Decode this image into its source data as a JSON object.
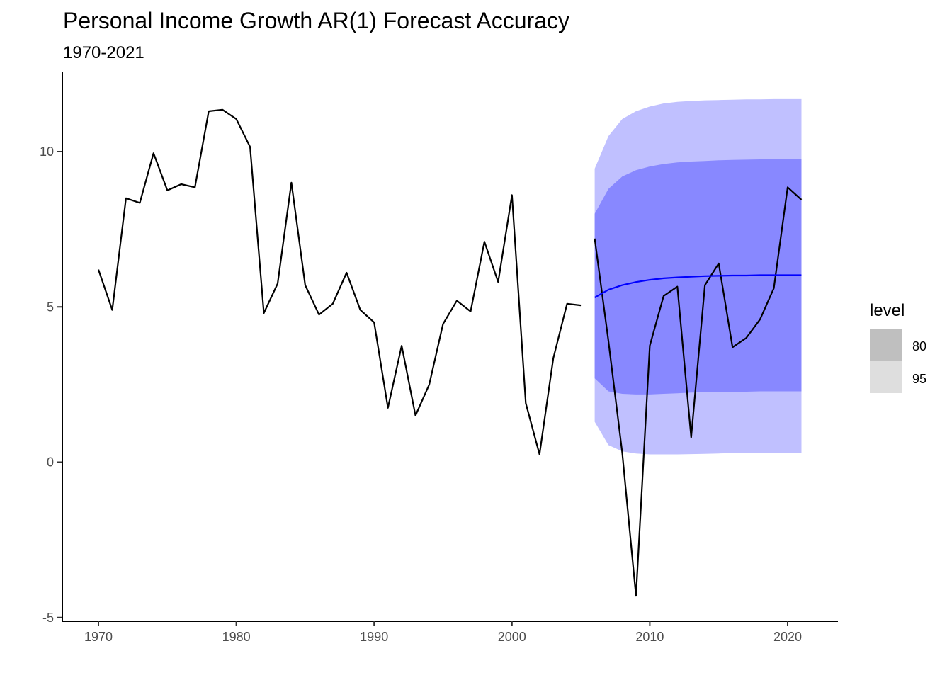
{
  "chart_data": {
    "type": "line",
    "title": "Personal Income Growth AR(1) Forecast Accuracy",
    "subtitle": "1970-2021",
    "xlabel": "",
    "ylabel": "",
    "xlim": [
      1967.5,
      2023.5
    ],
    "ylim": [
      -5.1,
      12.5
    ],
    "x_ticks": [
      1970,
      1980,
      1990,
      2000,
      2010,
      2020
    ],
    "y_ticks": [
      -5,
      0,
      5,
      10
    ],
    "grid": false,
    "legend": {
      "title": "level",
      "position": "right",
      "entries": [
        "80",
        "95"
      ]
    },
    "colors": {
      "history": "#000000",
      "forecast_mean": "#0000ff",
      "band_80": "#8888ff",
      "band_95": "#c0c0ff",
      "legend_80": "#bfbfbf",
      "legend_95": "#dedede",
      "axis": "#000000"
    },
    "series": [
      {
        "role": "history",
        "x": [
          1970,
          1971,
          1972,
          1973,
          1974,
          1975,
          1976,
          1977,
          1978,
          1979,
          1980,
          1981,
          1982,
          1983,
          1984,
          1985,
          1986,
          1987,
          1988,
          1989,
          1990,
          1991,
          1992,
          1993,
          1994,
          1995,
          1996,
          1997,
          1998,
          1999,
          2000,
          2001,
          2002,
          2003,
          2004,
          2005
        ],
        "values": [
          6.2,
          4.9,
          8.5,
          8.35,
          9.95,
          8.75,
          8.95,
          8.85,
          11.3,
          11.35,
          11.05,
          10.15,
          4.8,
          5.75,
          9.0,
          5.7,
          4.75,
          5.1,
          6.1,
          4.9,
          4.5,
          1.75,
          3.75,
          1.5,
          2.5,
          4.45,
          5.2,
          4.85,
          7.1,
          5.8,
          8.6,
          1.9,
          0.25,
          3.35,
          5.1,
          5.05
        ]
      },
      {
        "role": "actual",
        "x": [
          2006,
          2007,
          2008,
          2009,
          2010,
          2011,
          2012,
          2013,
          2014,
          2015,
          2016,
          2017,
          2018,
          2019,
          2020,
          2021
        ],
        "values": [
          7.2,
          3.9,
          0.3,
          -4.3,
          3.75,
          5.35,
          5.65,
          0.8,
          5.7,
          6.4,
          3.7,
          4.0,
          4.6,
          5.6,
          8.85,
          8.45
        ]
      },
      {
        "role": "forecast",
        "x": [
          2006,
          2007,
          2008,
          2009,
          2010,
          2011,
          2012,
          2013,
          2014,
          2015,
          2016,
          2017,
          2018,
          2019,
          2020,
          2021
        ],
        "values": [
          5.3,
          5.55,
          5.7,
          5.8,
          5.87,
          5.92,
          5.95,
          5.97,
          5.99,
          6.0,
          6.01,
          6.01,
          6.02,
          6.02,
          6.02,
          6.02
        ]
      }
    ],
    "bands": [
      {
        "level": "95",
        "x": [
          2006,
          2007,
          2008,
          2009,
          2010,
          2011,
          2012,
          2013,
          2014,
          2015,
          2016,
          2017,
          2018,
          2019,
          2020,
          2021
        ],
        "lower": [
          1.3,
          0.55,
          0.35,
          0.28,
          0.25,
          0.25,
          0.25,
          0.26,
          0.27,
          0.28,
          0.29,
          0.3,
          0.3,
          0.3,
          0.3,
          0.3
        ],
        "upper": [
          9.45,
          10.5,
          11.05,
          11.3,
          11.45,
          11.55,
          11.6,
          11.63,
          11.65,
          11.66,
          11.67,
          11.68,
          11.68,
          11.69,
          11.69,
          11.69
        ]
      },
      {
        "level": "80",
        "x": [
          2006,
          2007,
          2008,
          2009,
          2010,
          2011,
          2012,
          2013,
          2014,
          2015,
          2016,
          2017,
          2018,
          2019,
          2020,
          2021
        ],
        "lower": [
          2.7,
          2.28,
          2.2,
          2.18,
          2.18,
          2.2,
          2.22,
          2.24,
          2.25,
          2.26,
          2.27,
          2.27,
          2.28,
          2.28,
          2.28,
          2.28
        ],
        "upper": [
          8.0,
          8.8,
          9.2,
          9.4,
          9.52,
          9.6,
          9.65,
          9.68,
          9.7,
          9.72,
          9.73,
          9.74,
          9.75,
          9.75,
          9.75,
          9.75
        ]
      }
    ]
  }
}
